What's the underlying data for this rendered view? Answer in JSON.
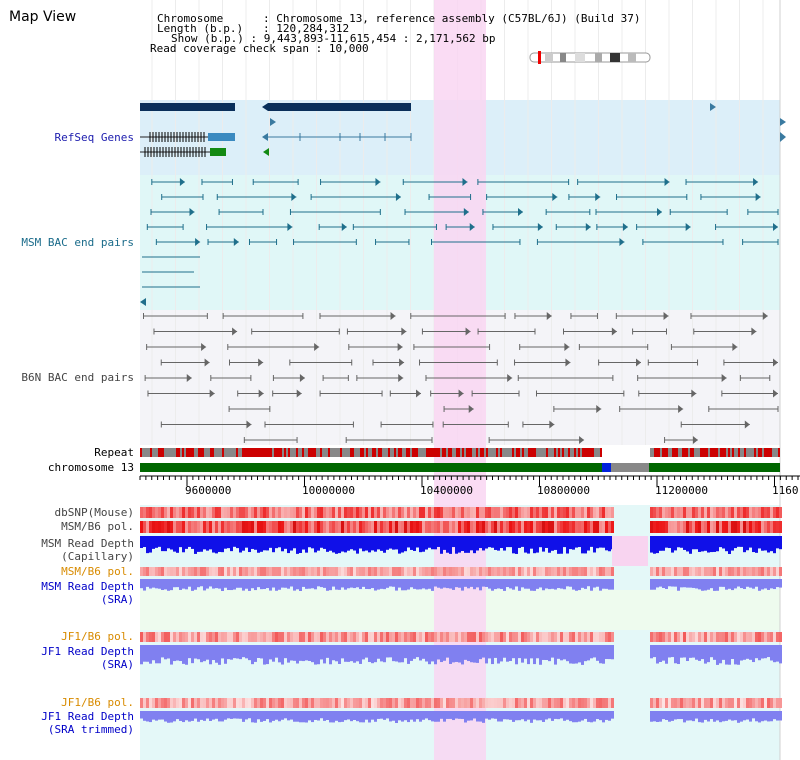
{
  "title": "Map View",
  "info": {
    "chromosome_label": "Chromosome",
    "chromosome_value": "Chromosome 13, reference assembly (C57BL/6J) (Build 37)",
    "length_label": "Length (b.p.)",
    "length_value": "120,284,312",
    "show_label": "Show (b.p.)",
    "show_value": "9,443,893-11,615,454 : 2,171,562 bp",
    "span_label": "Read coverage check span",
    "span_value": "10,000"
  },
  "tracks": {
    "refseq": "RefSeq Genes",
    "msm_bac": "MSM BAC end pairs",
    "b6n_bac": "B6N BAC end pairs",
    "repeat": "Repeat",
    "chromosome": "chromosome 13",
    "dbsnp": "dbSNP(Mouse)",
    "msm_pol": "MSM/B6 pol.",
    "msm_depth_cap_1": "MSM Read Depth",
    "msm_depth_cap_2": "(Capillary)",
    "msm_pol_sra": "MSM/B6 pol.",
    "msm_depth_sra_1": "MSM Read Depth",
    "msm_depth_sra_2": "(SRA)",
    "jf1_pol": "JF1/B6 pol.",
    "jf1_depth_1": "JF1 Read Depth",
    "jf1_depth_2": "(SRA)",
    "jf1_pol_trim": "JF1/B6 pol.",
    "jf1_depth_trim_1": "JF1 Read Depth",
    "jf1_depth_trim_2": "(SRA trimmed)"
  },
  "axis": {
    "ticks": [
      "9600000",
      "10000000",
      "10400000",
      "10800000",
      "11200000",
      "1160"
    ]
  },
  "colors": {
    "refseq_bg": "#dceff9",
    "msm_bg": "#e0f7f7",
    "highlight": "#f9d6f2",
    "chrom_green": "#006600",
    "repeat_red": "#cc0000",
    "depth_blue": "#1010e8",
    "depth_light": "#8080f0"
  }
}
